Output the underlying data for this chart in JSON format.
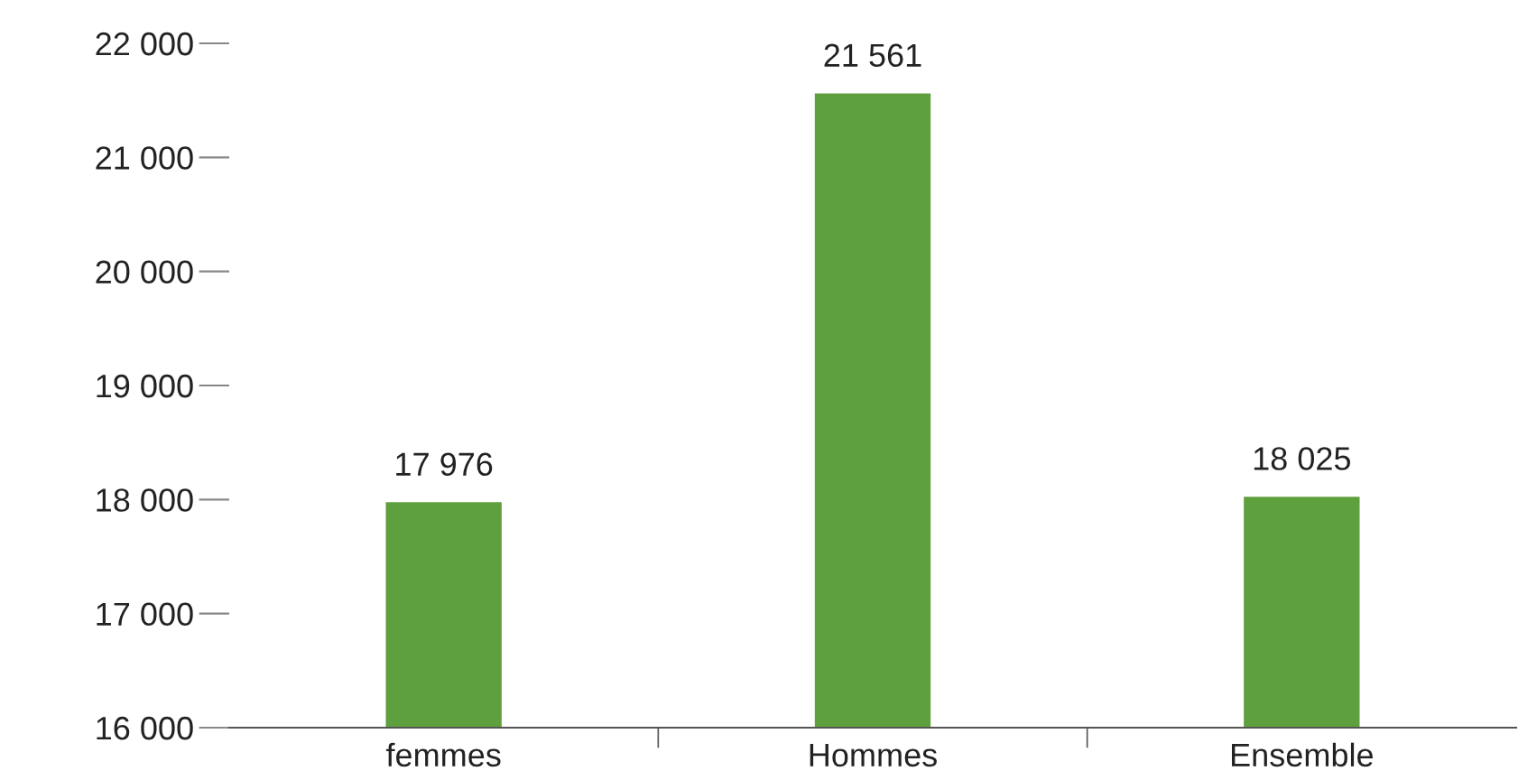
{
  "chart_data": {
    "type": "bar",
    "categories": [
      "femmes",
      "Hommes",
      "Ensemble"
    ],
    "values": [
      17976,
      21561,
      18025
    ],
    "color": "#5fa03e",
    "value_labels": [
      "17 976",
      "21 561",
      "18 025"
    ],
    "ylim": [
      16000,
      22000
    ],
    "yticks": [
      {
        "value": 16000,
        "label": "16 000"
      },
      {
        "value": 17000,
        "label": "17 000"
      },
      {
        "value": 18000,
        "label": "18 000"
      },
      {
        "value": 19000,
        "label": "19 000"
      },
      {
        "value": 20000,
        "label": "20 000"
      },
      {
        "value": 21000,
        "label": "21 000"
      },
      {
        "value": 22000,
        "label": "22 000"
      }
    ],
    "grid": false,
    "legend": false
  }
}
